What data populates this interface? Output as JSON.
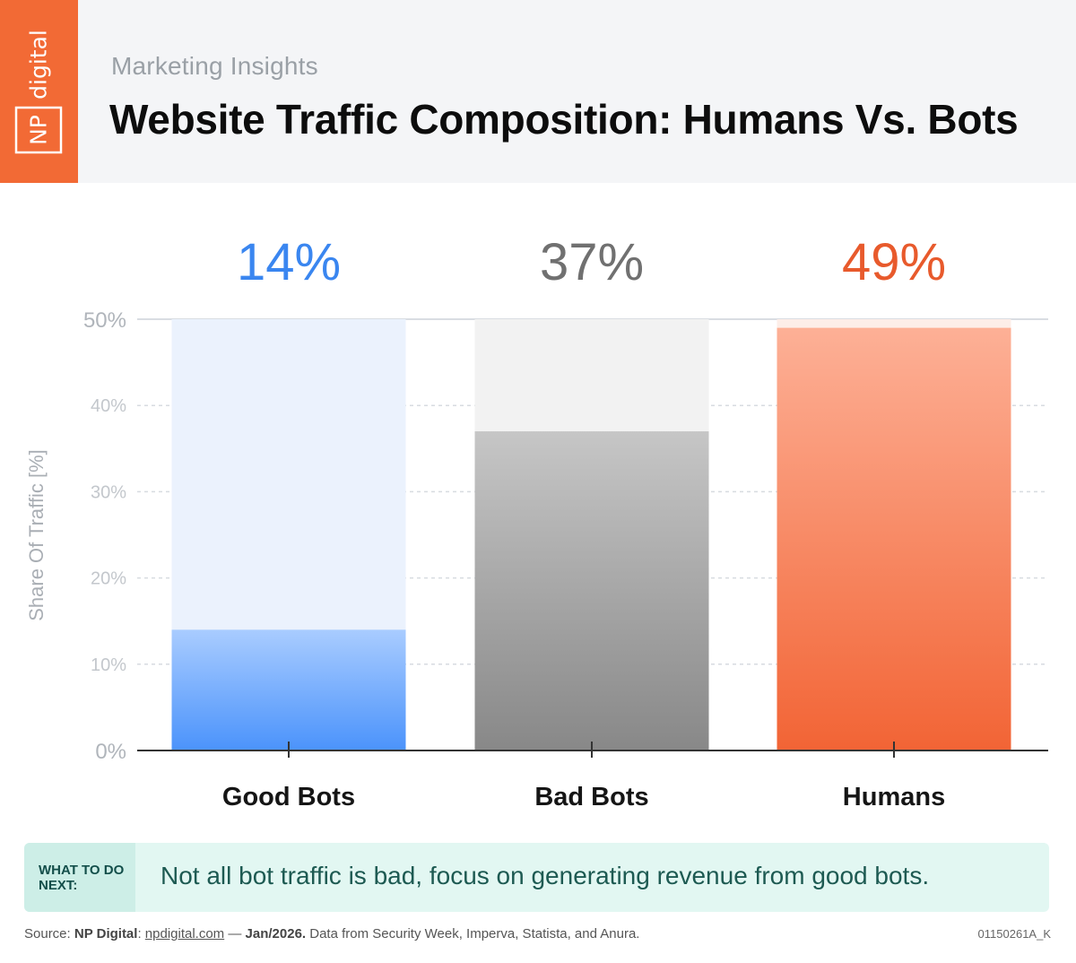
{
  "brand": {
    "name": "NP digital",
    "color": "#f26a35"
  },
  "header": {
    "kicker": "Marketing Insights",
    "title": "Website Traffic Composition: Humans Vs. Bots"
  },
  "chart_data": {
    "type": "bar",
    "categories": [
      "Good Bots",
      "Bad Bots",
      "Humans"
    ],
    "values": [
      14,
      37,
      49
    ],
    "value_labels": [
      "14%",
      "37%",
      "49%"
    ],
    "ylabel": "Share Of Traffic [%]",
    "ylim": [
      0,
      50
    ],
    "yticks": [
      "0%",
      "10%",
      "20%",
      "30%",
      "40%",
      "50%"
    ],
    "grid": true,
    "legend": "none",
    "colors": {
      "Good Bots": {
        "label": "#3a86f0",
        "top": "#a9ccff",
        "bottom": "#4b93fb",
        "track": "#ebf2fd"
      },
      "Bad Bots": {
        "label": "#707070",
        "top": "#c6c6c6",
        "bottom": "#888888",
        "track": "#f2f2f2"
      },
      "Humans": {
        "label": "#e85a2c",
        "top": "#fdb096",
        "bottom": "#f26435",
        "track": "#fdeee8"
      }
    }
  },
  "callout": {
    "tag": "WHAT TO DO NEXT:",
    "text": "Not all bot traffic is bad, focus on generating revenue from good bots."
  },
  "footer": {
    "prefix": "Source: ",
    "org": "NP Digital",
    "sep1": ": ",
    "link": "npdigital.com",
    "sep2": " — ",
    "date": "Jan/2026.",
    "rest": " Data from Security Week, Imperva, Statista, and Anura.",
    "code": "01150261A_K"
  }
}
